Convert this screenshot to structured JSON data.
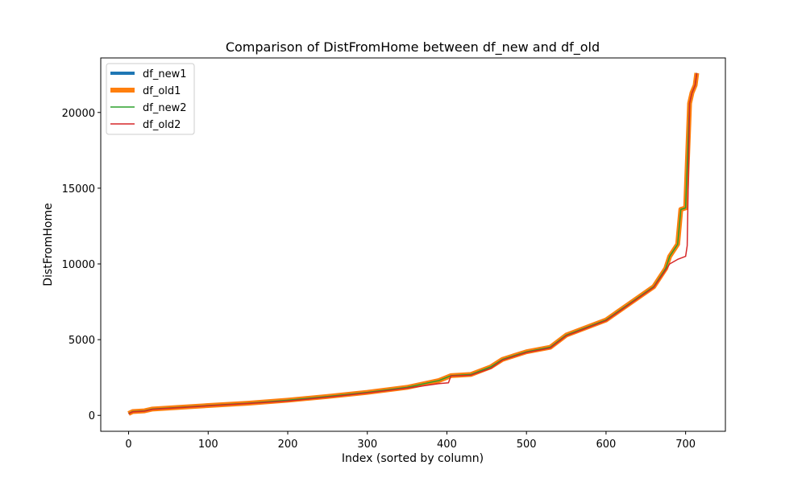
{
  "chart_data": {
    "type": "line",
    "title": "Comparison of DistFromHome between df_new and df_old",
    "xlabel": "Index (sorted by column)",
    "ylabel": "DistFromHome",
    "xlim": [
      -35,
      750
    ],
    "ylim": [
      -1050,
      23600
    ],
    "xticks": [
      0,
      100,
      200,
      300,
      400,
      500,
      600,
      700
    ],
    "yticks": [
      0,
      5000,
      10000,
      15000,
      20000
    ],
    "grid": false,
    "legend_position": "top-left",
    "series": [
      {
        "name": "df_new1",
        "color": "#1f77b4",
        "width": 4,
        "x": [
          0,
          5,
          20,
          30,
          60,
          100,
          150,
          200,
          250,
          300,
          350,
          390,
          405,
          430,
          455,
          470,
          500,
          530,
          550,
          570,
          600,
          630,
          660,
          675,
          680,
          690,
          694,
          700,
          705,
          708,
          712,
          714
        ],
        "y": [
          120,
          250,
          300,
          420,
          520,
          650,
          800,
          1000,
          1250,
          1520,
          1850,
          2300,
          2620,
          2700,
          3200,
          3700,
          4200,
          4500,
          5300,
          5700,
          6300,
          7400,
          8500,
          9700,
          10500,
          11300,
          13600,
          13700,
          20600,
          21300,
          21800,
          22600
        ]
      },
      {
        "name": "df_old1",
        "color": "#ff7f0e",
        "width": 6,
        "x": [
          0,
          5,
          20,
          30,
          60,
          100,
          150,
          200,
          250,
          300,
          350,
          390,
          405,
          430,
          455,
          470,
          500,
          530,
          550,
          570,
          600,
          630,
          660,
          675,
          680,
          690,
          694,
          700,
          705,
          708,
          712,
          714
        ],
        "y": [
          120,
          250,
          300,
          420,
          520,
          650,
          800,
          1000,
          1250,
          1520,
          1850,
          2300,
          2620,
          2700,
          3200,
          3700,
          4200,
          4500,
          5300,
          5700,
          6300,
          7400,
          8500,
          9700,
          10500,
          11300,
          13600,
          13700,
          20600,
          21300,
          21800,
          22600
        ]
      },
      {
        "name": "df_new2",
        "color": "#2ca02c",
        "width": 1.5,
        "x": [
          0,
          5,
          20,
          30,
          60,
          100,
          150,
          200,
          250,
          300,
          350,
          390,
          405,
          430,
          455,
          470,
          500,
          530,
          550,
          570,
          600,
          630,
          660,
          675,
          680,
          690,
          694,
          700,
          705,
          708,
          712,
          714
        ],
        "y": [
          120,
          250,
          300,
          420,
          520,
          650,
          800,
          1000,
          1250,
          1520,
          1850,
          2300,
          2620,
          2700,
          3200,
          3700,
          4200,
          4500,
          5300,
          5700,
          6300,
          7400,
          8500,
          9700,
          10500,
          11300,
          13600,
          13700,
          20600,
          21300,
          21800,
          22600
        ]
      },
      {
        "name": "df_old2",
        "color": "#d62728",
        "width": 1.5,
        "x": [
          0,
          5,
          20,
          30,
          60,
          100,
          150,
          200,
          250,
          300,
          350,
          390,
          402,
          405,
          430,
          455,
          470,
          500,
          530,
          550,
          570,
          600,
          630,
          660,
          675,
          680,
          690,
          700,
          702,
          705,
          708,
          712,
          714
        ],
        "y": [
          100,
          230,
          280,
          400,
          500,
          630,
          780,
          950,
          1200,
          1480,
          1800,
          2100,
          2150,
          2600,
          2650,
          3100,
          3650,
          4150,
          4450,
          5250,
          5650,
          6250,
          7350,
          8450,
          9600,
          10000,
          10300,
          10500,
          11200,
          20600,
          21300,
          21800,
          22600
        ]
      }
    ]
  }
}
